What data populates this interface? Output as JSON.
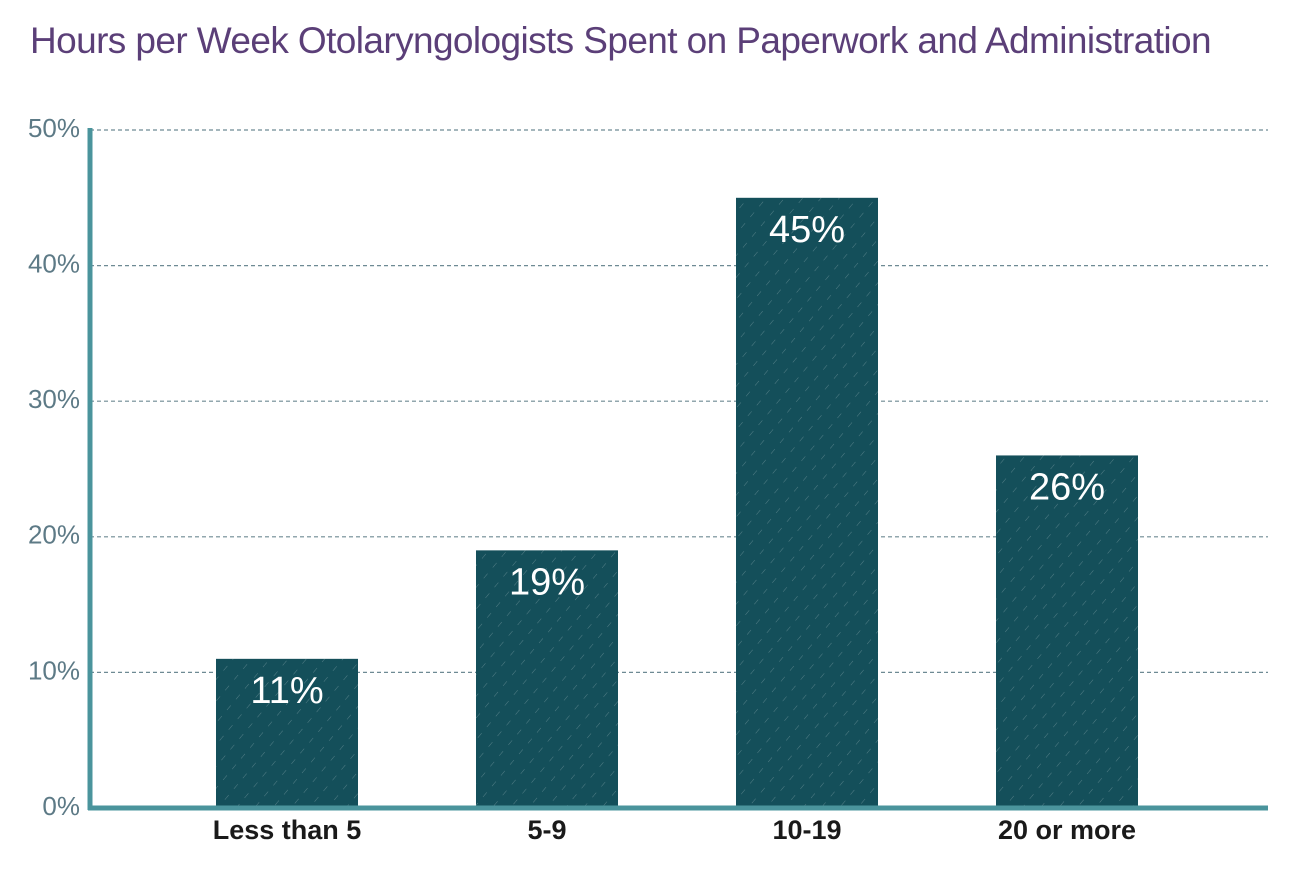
{
  "chart_data": {
    "type": "bar",
    "title": "Hours per Week Otolaryngologists Spent on Paperwork and Administration",
    "categories": [
      "Less than 5",
      "5-9",
      "10-19",
      "20 or more"
    ],
    "values": [
      11,
      19,
      45,
      26
    ],
    "data_labels": [
      "11%",
      "19%",
      "45%",
      "26%"
    ],
    "ylim": [
      0,
      50
    ],
    "yticks": [
      0,
      10,
      20,
      30,
      40,
      50
    ],
    "ytick_labels": [
      "0%",
      "10%",
      "20%",
      "30%",
      "40%",
      "50%"
    ],
    "xlabel": "",
    "ylabel": "",
    "grid": true,
    "legend": "none",
    "colors": {
      "bar": "#144f5a",
      "axis": "#4a949c",
      "grid": "#6e8a94",
      "title": "#5b3f78",
      "tick_label": "#5d7a86",
      "category_label": "#1a1a1a",
      "data_label": "#ffffff"
    }
  }
}
